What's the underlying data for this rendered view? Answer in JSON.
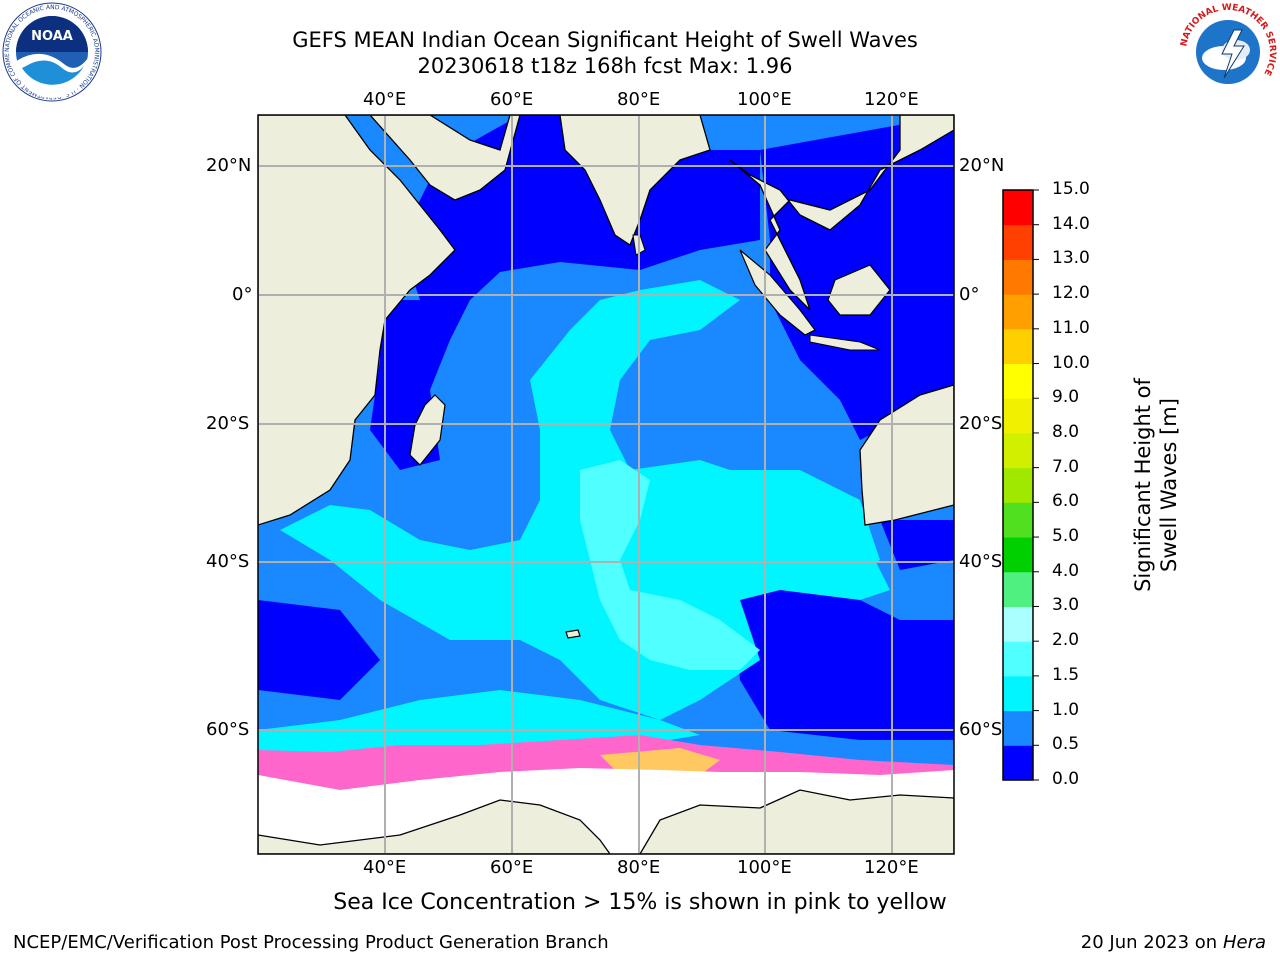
{
  "title": {
    "line1": "GEFS MEAN Indian Ocean Significant Height of Swell Waves",
    "line2": "20230618 t18z 168h fcst   Max: 1.96"
  },
  "map": {
    "lon_ticks": [
      "40°E",
      "60°E",
      "80°E",
      "100°E",
      "120°E"
    ],
    "lat_ticks": [
      "20°N",
      "0°",
      "20°S",
      "40°S",
      "60°S"
    ],
    "extent": {
      "lon": [
        20,
        130
      ],
      "lat": [
        -70,
        28
      ]
    },
    "colors": {
      "land": "#eeeedd",
      "water_low": "#0000ff",
      "ice": "#ffffff",
      "grid": "#b0b0b0"
    }
  },
  "colorbar": {
    "label": "Significant Height of Swell Waves [m]",
    "ticks": [
      "0.0",
      "0.5",
      "1.0",
      "1.5",
      "2.0",
      "3.0",
      "4.0",
      "5.0",
      "6.0",
      "7.0",
      "8.0",
      "9.0",
      "10.0",
      "11.0",
      "12.0",
      "13.0",
      "14.0",
      "15.0"
    ],
    "colors": [
      "#0000ff",
      "#1a88ff",
      "#00f5ff",
      "#50ffff",
      "#aaffff",
      "#50f080",
      "#00d000",
      "#50e020",
      "#a0e800",
      "#d0f000",
      "#f0f000",
      "#ffff00",
      "#ffd000",
      "#ffa000",
      "#ff7800",
      "#ff4000",
      "#ff0000"
    ]
  },
  "subtitle": "Sea Ice Concentration > 15% is shown in pink to yellow",
  "footer": {
    "left": "NCEP/EMC/Verification Post Processing Product Generation Branch",
    "date": "20 Jun 2023 on",
    "host": "Hera"
  },
  "logos": {
    "noaa_text": "NOAA",
    "noaa_ring": "NATIONAL OCEANIC AND ATMOSPHERIC ADMINISTRATION · U.S. DEPARTMENT OF COMMERCE",
    "nws_ring": "NATIONAL WEATHER SERVICE"
  }
}
